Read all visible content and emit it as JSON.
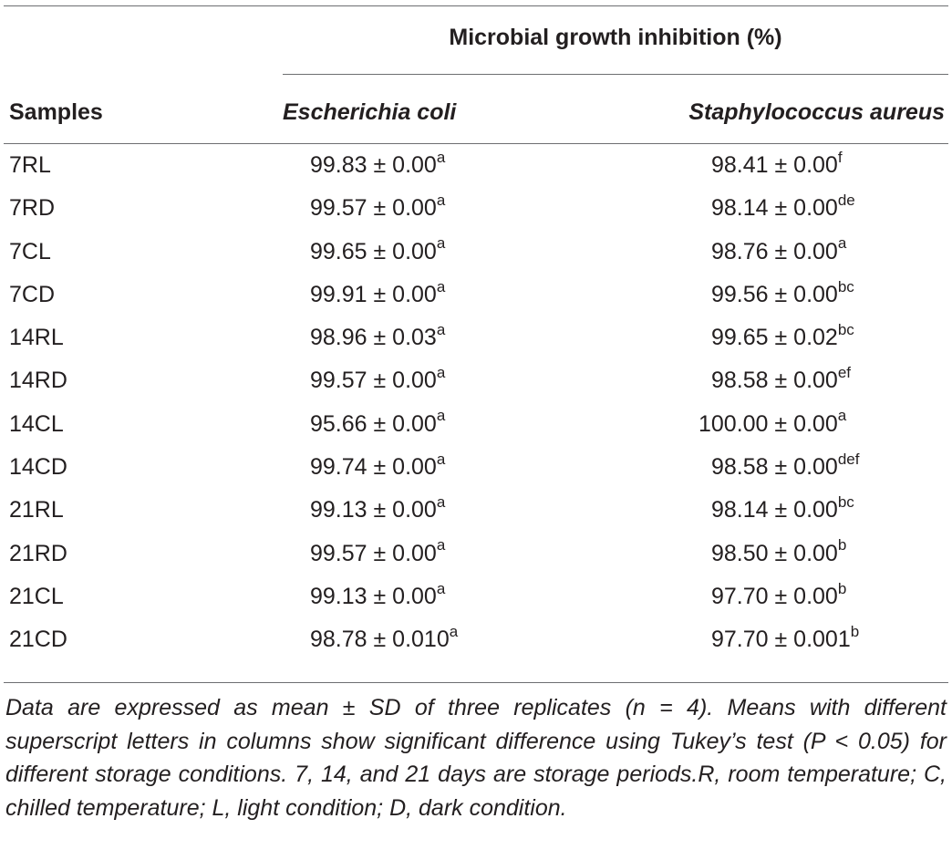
{
  "table": {
    "group_header": "Microbial growth inhibition (%)",
    "columns": {
      "samples": "Samples",
      "ecoli": "Escherichia coli",
      "saureus": "Staphylococcus aureus"
    },
    "rows": [
      {
        "sample": "7RL",
        "ecoli": "99.83 ± 0.00",
        "ecoli_sup": "a",
        "saureus": "98.41 ± 0.00",
        "saureus_sup": "f"
      },
      {
        "sample": "7RD",
        "ecoli": "99.57 ± 0.00",
        "ecoli_sup": "a",
        "saureus": "98.14 ± 0.00",
        "saureus_sup": "de"
      },
      {
        "sample": "7CL",
        "ecoli": "99.65 ± 0.00",
        "ecoli_sup": "a",
        "saureus": "98.76 ± 0.00",
        "saureus_sup": "a"
      },
      {
        "sample": "7CD",
        "ecoli": "99.91 ± 0.00",
        "ecoli_sup": "a",
        "saureus": "99.56 ± 0.00",
        "saureus_sup": "bc"
      },
      {
        "sample": "14RL",
        "ecoli": "98.96 ± 0.03",
        "ecoli_sup": "a",
        "saureus": "99.65 ± 0.02",
        "saureus_sup": "bc"
      },
      {
        "sample": "14RD",
        "ecoli": "99.57 ± 0.00",
        "ecoli_sup": "a",
        "saureus": "98.58 ± 0.00",
        "saureus_sup": "ef"
      },
      {
        "sample": "14CL",
        "ecoli": "95.66 ± 0.00",
        "ecoli_sup": "a",
        "saureus": "100.00 ± 0.00",
        "saureus_sup": "a"
      },
      {
        "sample": "14CD",
        "ecoli": "99.74 ± 0.00",
        "ecoli_sup": "a",
        "saureus": "98.58 ± 0.00",
        "saureus_sup": "def"
      },
      {
        "sample": "21RL",
        "ecoli": "99.13 ± 0.00",
        "ecoli_sup": "a",
        "saureus": "98.14 ± 0.00",
        "saureus_sup": "bc"
      },
      {
        "sample": "21RD",
        "ecoli": "99.57 ± 0.00",
        "ecoli_sup": "a",
        "saureus": "98.50 ± 0.00",
        "saureus_sup": "b"
      },
      {
        "sample": "21CL",
        "ecoli": "99.13 ± 0.00",
        "ecoli_sup": "a",
        "saureus": "97.70 ± 0.00",
        "saureus_sup": "b"
      },
      {
        "sample": "21CD",
        "ecoli": "98.78 ± 0.010",
        "ecoli_sup": "a",
        "saureus": "97.70 ± 0.001",
        "saureus_sup": "b"
      }
    ],
    "footnote": "Data are expressed as mean ± SD of three replicates (n = 4). Means with different superscript letters in columns show significant difference using Tukey’s test (P < 0.05) for different storage conditions. 7, 14, and 21 days are storage periods.R, room temperature; C, chilled temperature; L, light condition; D, dark condition."
  }
}
